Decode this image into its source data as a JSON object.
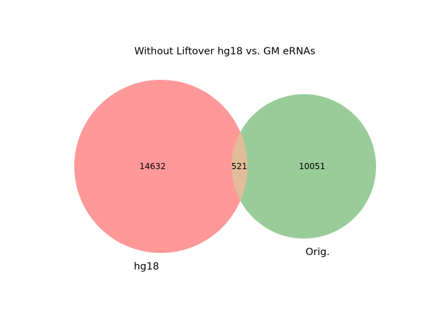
{
  "title": "Without Liftover hg18 vs. GM eRNAs",
  "diagram": {
    "type": "venn2",
    "sets": [
      {
        "key": "left",
        "label": "hg18",
        "only_count": "14632",
        "color": "#ff9999"
      },
      {
        "key": "right",
        "label": "Orig.",
        "only_count": "10051",
        "color": "#99cc99"
      }
    ],
    "intersection": {
      "count": "521",
      "color": "#e2bc99"
    }
  }
}
